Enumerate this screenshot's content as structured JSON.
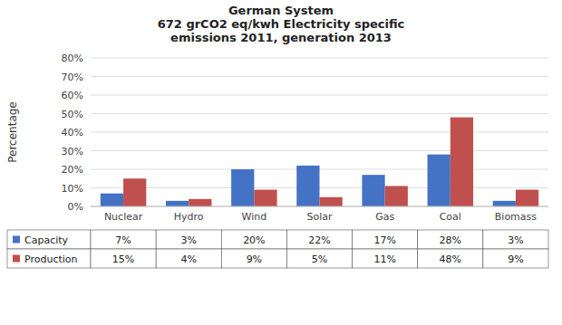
{
  "chart_data": {
    "type": "bar",
    "title": "German System\n672 grCO2 eq/kwh Electricity specific\nemissions 2011, generation 2013",
    "categories": [
      "Nuclear",
      "Hydro",
      "Wind",
      "Solar",
      "Gas",
      "Coal",
      "Biomass"
    ],
    "series": [
      {
        "name": "Capacity",
        "color": "#4472C4",
        "values": [
          7,
          3,
          20,
          22,
          17,
          28,
          3
        ],
        "value_labels": [
          "7%",
          "3%",
          "20%",
          "22%",
          "17%",
          "28%",
          "3%"
        ]
      },
      {
        "name": "Production",
        "color": "#C0504D",
        "values": [
          15,
          4,
          9,
          5,
          11,
          48,
          9
        ],
        "value_labels": [
          "15%",
          "4%",
          "9%",
          "5%",
          "11%",
          "48%",
          "9%"
        ]
      }
    ],
    "y_label": "Percentage",
    "ylim": [
      0,
      80
    ],
    "yticks": [
      {
        "value": 0,
        "label": "0%"
      },
      {
        "value": 10,
        "label": "10%"
      },
      {
        "value": 20,
        "label": "20%"
      },
      {
        "value": 30,
        "label": "30%"
      },
      {
        "value": 40,
        "label": "40%"
      },
      {
        "value": 50,
        "label": "50%"
      },
      {
        "value": 60,
        "label": "60%"
      },
      {
        "value": 70,
        "label": "70%"
      },
      {
        "value": 80,
        "label": "80%"
      }
    ],
    "grid": true,
    "legend": "bottom"
  }
}
